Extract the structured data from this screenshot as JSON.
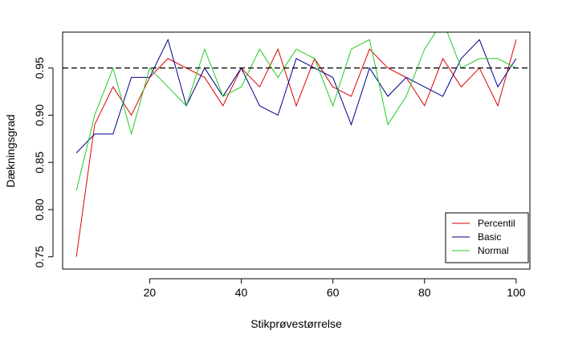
{
  "chart_data": {
    "type": "line",
    "xlabel": "Stikprøvestørrelse",
    "ylabel": "Dækningsgrad",
    "xlim": [
      1,
      103
    ],
    "ylim": [
      0.737,
      0.988
    ],
    "x_ticks": [
      20,
      40,
      60,
      80,
      100
    ],
    "x_tick_labels": [
      "20",
      "40",
      "60",
      "80",
      "100"
    ],
    "y_ticks": [
      0.75,
      0.8,
      0.85,
      0.9,
      0.95
    ],
    "y_tick_labels": [
      "0.75",
      "0.80",
      "0.85",
      "0.90",
      "0.95"
    ],
    "grid": false,
    "legend_position": "bottom-right",
    "reference_line": {
      "y": 0.95,
      "style": "dashed",
      "color": "#000000"
    },
    "x": [
      4,
      8,
      12,
      16,
      20,
      24,
      28,
      32,
      36,
      40,
      44,
      48,
      52,
      56,
      60,
      64,
      68,
      72,
      76,
      80,
      84,
      88,
      92,
      96,
      100
    ],
    "series": [
      {
        "name": "Percentil",
        "color": "#dd0000",
        "values": [
          0.75,
          0.89,
          0.93,
          0.9,
          0.94,
          0.96,
          0.95,
          0.94,
          0.91,
          0.95,
          0.93,
          0.97,
          0.91,
          0.96,
          0.93,
          0.92,
          0.97,
          0.95,
          0.94,
          0.91,
          0.96,
          0.93,
          0.95,
          0.91,
          0.98
        ]
      },
      {
        "name": "Basic",
        "color": "#00008b",
        "values": [
          0.86,
          0.88,
          0.88,
          0.94,
          0.94,
          0.98,
          0.91,
          0.95,
          0.92,
          0.95,
          0.91,
          0.9,
          0.96,
          0.95,
          0.94,
          0.89,
          0.95,
          0.92,
          0.94,
          0.93,
          0.92,
          0.96,
          0.98,
          0.93,
          0.96
        ]
      },
      {
        "name": "Normal",
        "color": "#22cc22",
        "values": [
          0.82,
          0.9,
          0.95,
          0.88,
          0.95,
          0.93,
          0.91,
          0.97,
          0.92,
          0.93,
          0.97,
          0.94,
          0.97,
          0.96,
          0.91,
          0.97,
          0.98,
          0.89,
          0.92,
          0.97,
          1.0,
          0.95,
          0.96,
          0.96,
          0.95
        ]
      }
    ]
  }
}
